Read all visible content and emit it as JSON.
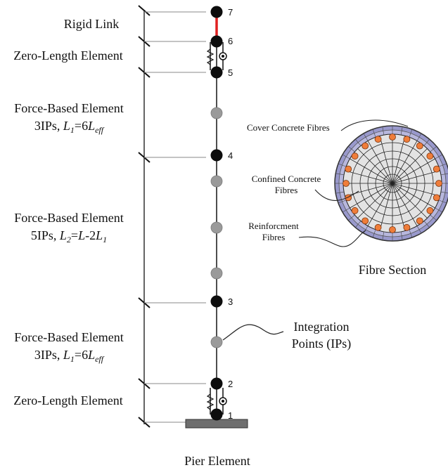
{
  "segments": [
    {
      "line1": "Rigid Link"
    },
    {
      "line1": "Zero-Length Element"
    },
    {
      "line1": "Force-Based Element",
      "line2_prefix": "3IPs, ",
      "L": "L",
      "sub1": "1",
      "eq": "=6",
      "L2": "L",
      "sub2": "eff"
    },
    {
      "line1": "Force-Based Element",
      "line2_prefix": "5IPs, ",
      "L": "L",
      "sub1": "2",
      "eq": "=",
      "L2": "L",
      "mid": "-2",
      "L3": "L",
      "sub3": "1"
    },
    {
      "line1": "Force-Based Element",
      "line2_prefix": "3IPs, ",
      "L": "L",
      "sub1": "1",
      "eq": "=6",
      "L2": "L",
      "sub2": "eff"
    },
    {
      "line1": "Zero-Length Element"
    }
  ],
  "nodes": [
    "7",
    "6",
    "5",
    "4",
    "3",
    "2",
    "1"
  ],
  "integration_points_label": {
    "line1": "Integration",
    "line2": "Points (IPs)"
  },
  "section": {
    "title": "Fibre Section",
    "cover_label": "Cover Concrete Fibres",
    "confined_label_1": "Confined Concrete",
    "confined_label_2": "Fibres",
    "reinf_label_1": "Reinforcment",
    "reinf_label_2": "Fibres"
  },
  "caption": "Pier Element",
  "colors": {
    "node": "#0d0d0d",
    "ip": "#9a9a9a",
    "rigid_link": "#e02020",
    "rebar": "#ef7d3a",
    "cover": "#9999cc",
    "core": "#e3e3e3",
    "base": "#6e6e6e"
  }
}
